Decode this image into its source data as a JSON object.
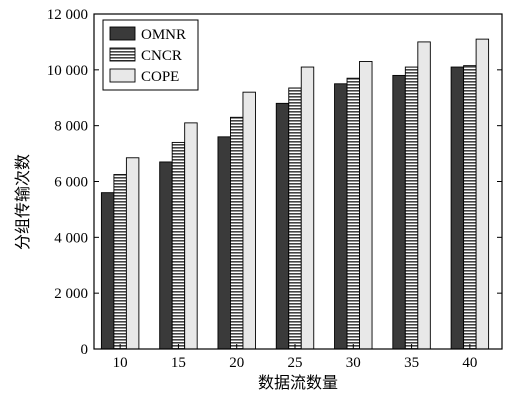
{
  "chart_data": {
    "type": "bar",
    "xlabel": "数据流数量",
    "ylabel": "分组传输次数",
    "categories": [
      "10",
      "15",
      "20",
      "25",
      "30",
      "35",
      "40"
    ],
    "series": [
      {
        "name": "OMNR",
        "values": [
          5600,
          6700,
          7600,
          8800,
          9500,
          9800,
          10100
        ],
        "color": "#3a3a3a",
        "pattern": "solid-dark"
      },
      {
        "name": "CNCR",
        "values": [
          6250,
          7400,
          8300,
          9350,
          9700,
          10100,
          10150
        ],
        "color": "#666666",
        "pattern": "horizontal-stripes"
      },
      {
        "name": "COPE",
        "values": [
          6850,
          8100,
          9200,
          10100,
          10300,
          11000,
          11100
        ],
        "color": "#e8e8e8",
        "pattern": "solid-light"
      }
    ],
    "yticks": [
      0,
      2000,
      4000,
      6000,
      8000,
      10000,
      12000
    ],
    "ytick_labels": [
      "0",
      "2 000",
      "4 000",
      "6 000",
      "8 000",
      "10 000",
      "12 000"
    ],
    "ylim": [
      0,
      12000
    ],
    "legend": "top-left",
    "grid": false
  }
}
